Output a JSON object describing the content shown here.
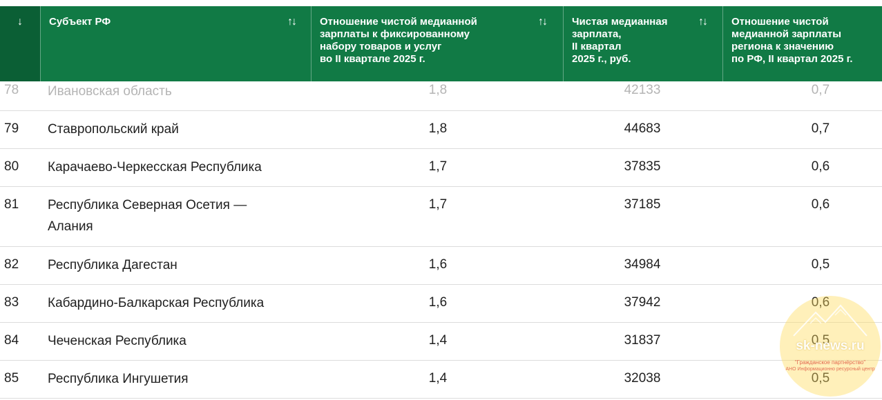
{
  "header": {
    "rank_sort_icon": "arrow-down-icon",
    "columns": [
      {
        "label": "Субъект РФ",
        "sort_icon": "sort-up-down-icon"
      },
      {
        "label": "Отношение чистой медианной\nзарплаты к фиксированному\nнабору товаров и услуг\nво II квартале 2025 г.",
        "sort_icon": "sort-up-down-icon"
      },
      {
        "label": "Чистая медианная\nзарплата,\nII квартал\n2025 г., руб.",
        "sort_icon": "sort-up-down-icon"
      },
      {
        "label": "Отношение чистой\nмедианной зарплаты\nрегиона к значению\nпо РФ, II квартал 2025 г."
      }
    ],
    "symbols": {
      "down": "↓",
      "updown": "↑↓"
    }
  },
  "rows": [
    {
      "rank": "78",
      "region": "Ивановская область",
      "ratio_basket": "1,8",
      "salary": "42133",
      "ratio_rf": "0,7"
    },
    {
      "rank": "79",
      "region": "Ставропольский край",
      "ratio_basket": "1,8",
      "salary": "44683",
      "ratio_rf": "0,7"
    },
    {
      "rank": "80",
      "region": "Карачаево-Черкесская Республика",
      "ratio_basket": "1,7",
      "salary": "37835",
      "ratio_rf": "0,6"
    },
    {
      "rank": "81",
      "region": "Республика Северная Осетия —\nАлания",
      "ratio_basket": "1,7",
      "salary": "37185",
      "ratio_rf": "0,6"
    },
    {
      "rank": "82",
      "region": "Республика Дагестан",
      "ratio_basket": "1,6",
      "salary": "34984",
      "ratio_rf": "0,5"
    },
    {
      "rank": "83",
      "region": "Кабардино-Балкарская Республика",
      "ratio_basket": "1,6",
      "salary": "37942",
      "ratio_rf": "0,6"
    },
    {
      "rank": "84",
      "region": "Чеченская Республика",
      "ratio_basket": "1,4",
      "salary": "31837",
      "ratio_rf": "0,5"
    },
    {
      "rank": "85",
      "region": "Республика Ингушетия",
      "ratio_basket": "1,4",
      "salary": "32038",
      "ratio_rf": "0,5"
    }
  ],
  "watermark": {
    "site": "sk-news.ru",
    "line1": "\"Гражданское партнёрство\"",
    "line2": "АНО Информационно ресурсный центр"
  },
  "colors": {
    "header_bg": "#117a45",
    "rank_header_bg": "#0b5f35",
    "watermark": "#ffdc5a"
  }
}
